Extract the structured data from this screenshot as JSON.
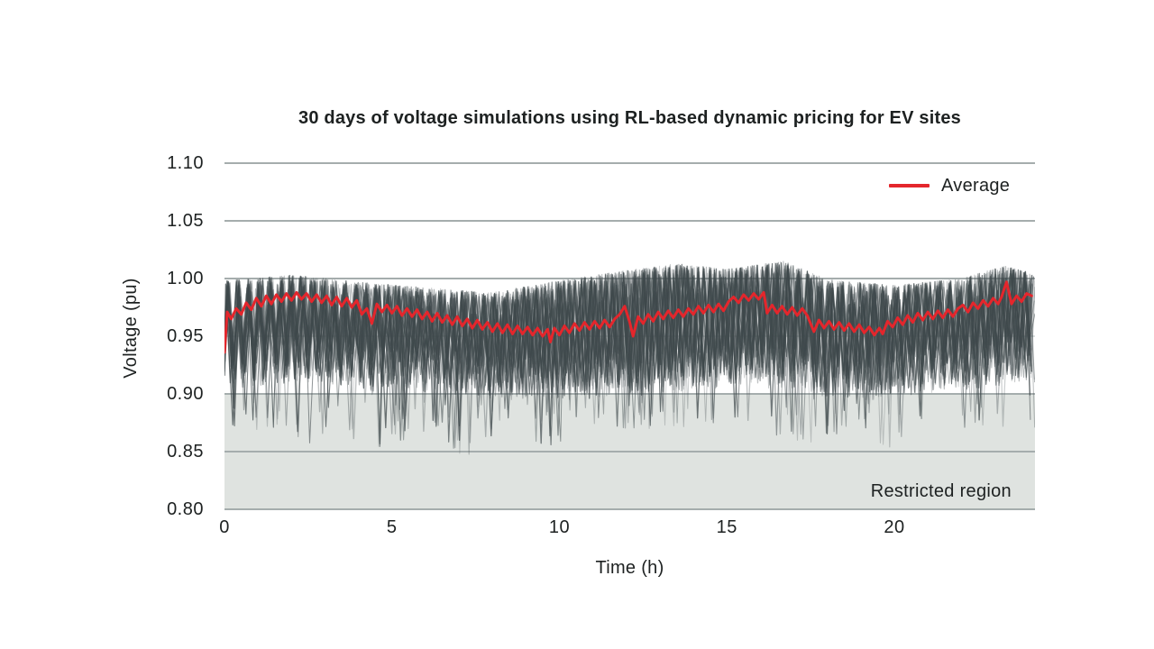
{
  "page": {
    "background": "#ffffff"
  },
  "chart_data": {
    "type": "line",
    "title": "30 days of voltage simulations using RL-based dynamic pricing for EV sites",
    "xlabel": "Time (h)",
    "ylabel": "Voltage (pu)",
    "xlim": [
      0,
      24.2
    ],
    "ylim": [
      0.8,
      1.1
    ],
    "xticks": [
      0,
      5,
      10,
      15,
      20
    ],
    "yticks": [
      0.8,
      0.85,
      0.9,
      0.95,
      1.0,
      1.05,
      1.1
    ],
    "grid": "horizontal",
    "minor_gridline_y": 0.95,
    "colors": {
      "grid": "#a5adad",
      "minor_grid": "#c7cdcd",
      "trace": "#3f494c",
      "text": "#1d2121",
      "background": "#ffffff"
    },
    "legend": {
      "position": "top-right",
      "entries": [
        {
          "label": "Average",
          "color": "#e4262c"
        }
      ]
    },
    "restricted_region": {
      "label": "Restricted region",
      "from": 0.8,
      "to": 0.9,
      "fill": "#dfe3e0"
    },
    "series": [
      {
        "name": "Average",
        "color": "#e4262c",
        "points": [
          [
            0,
            0.936
          ],
          [
            0.08,
            0.971
          ],
          [
            0.2,
            0.965
          ],
          [
            0.35,
            0.974
          ],
          [
            0.5,
            0.969
          ],
          [
            0.65,
            0.979
          ],
          [
            0.8,
            0.973
          ],
          [
            0.95,
            0.983
          ],
          [
            1.1,
            0.976
          ],
          [
            1.25,
            0.985
          ],
          [
            1.4,
            0.978
          ],
          [
            1.55,
            0.986
          ],
          [
            1.7,
            0.98
          ],
          [
            1.85,
            0.987
          ],
          [
            2.0,
            0.981
          ],
          [
            2.15,
            0.988
          ],
          [
            2.3,
            0.982
          ],
          [
            2.45,
            0.987
          ],
          [
            2.6,
            0.98
          ],
          [
            2.75,
            0.986
          ],
          [
            2.9,
            0.979
          ],
          [
            3.05,
            0.985
          ],
          [
            3.2,
            0.977
          ],
          [
            3.35,
            0.984
          ],
          [
            3.5,
            0.976
          ],
          [
            3.65,
            0.983
          ],
          [
            3.8,
            0.975
          ],
          [
            3.95,
            0.981
          ],
          [
            4.1,
            0.969
          ],
          [
            4.25,
            0.974
          ],
          [
            4.4,
            0.961
          ],
          [
            4.55,
            0.978
          ],
          [
            4.7,
            0.971
          ],
          [
            4.85,
            0.977
          ],
          [
            5.0,
            0.97
          ],
          [
            5.15,
            0.976
          ],
          [
            5.3,
            0.968
          ],
          [
            5.45,
            0.974
          ],
          [
            5.6,
            0.967
          ],
          [
            5.75,
            0.973
          ],
          [
            5.9,
            0.965
          ],
          [
            6.05,
            0.971
          ],
          [
            6.2,
            0.963
          ],
          [
            6.35,
            0.97
          ],
          [
            6.5,
            0.962
          ],
          [
            6.65,
            0.968
          ],
          [
            6.8,
            0.96
          ],
          [
            6.95,
            0.967
          ],
          [
            7.1,
            0.959
          ],
          [
            7.25,
            0.965
          ],
          [
            7.4,
            0.957
          ],
          [
            7.55,
            0.964
          ],
          [
            7.7,
            0.956
          ],
          [
            7.85,
            0.962
          ],
          [
            8.0,
            0.954
          ],
          [
            8.15,
            0.961
          ],
          [
            8.3,
            0.953
          ],
          [
            8.45,
            0.96
          ],
          [
            8.6,
            0.952
          ],
          [
            8.75,
            0.959
          ],
          [
            8.9,
            0.952
          ],
          [
            9.05,
            0.958
          ],
          [
            9.2,
            0.951
          ],
          [
            9.35,
            0.957
          ],
          [
            9.5,
            0.95
          ],
          [
            9.65,
            0.956
          ],
          [
            9.73,
            0.945
          ],
          [
            9.85,
            0.957
          ],
          [
            10.0,
            0.951
          ],
          [
            10.15,
            0.959
          ],
          [
            10.3,
            0.953
          ],
          [
            10.45,
            0.961
          ],
          [
            10.6,
            0.955
          ],
          [
            10.75,
            0.962
          ],
          [
            10.9,
            0.956
          ],
          [
            11.05,
            0.963
          ],
          [
            11.2,
            0.957
          ],
          [
            11.35,
            0.964
          ],
          [
            11.5,
            0.958
          ],
          [
            11.65,
            0.965
          ],
          [
            11.8,
            0.969
          ],
          [
            11.95,
            0.976
          ],
          [
            12.1,
            0.962
          ],
          [
            12.2,
            0.95
          ],
          [
            12.35,
            0.967
          ],
          [
            12.5,
            0.961
          ],
          [
            12.65,
            0.969
          ],
          [
            12.8,
            0.963
          ],
          [
            12.95,
            0.971
          ],
          [
            13.1,
            0.965
          ],
          [
            13.25,
            0.972
          ],
          [
            13.4,
            0.966
          ],
          [
            13.55,
            0.973
          ],
          [
            13.7,
            0.967
          ],
          [
            13.85,
            0.974
          ],
          [
            14.0,
            0.969
          ],
          [
            14.15,
            0.976
          ],
          [
            14.3,
            0.97
          ],
          [
            14.45,
            0.977
          ],
          [
            14.6,
            0.971
          ],
          [
            14.75,
            0.978
          ],
          [
            14.9,
            0.972
          ],
          [
            15.05,
            0.98
          ],
          [
            15.2,
            0.984
          ],
          [
            15.35,
            0.979
          ],
          [
            15.5,
            0.986
          ],
          [
            15.65,
            0.981
          ],
          [
            15.8,
            0.987
          ],
          [
            15.95,
            0.982
          ],
          [
            16.1,
            0.988
          ],
          [
            16.2,
            0.97
          ],
          [
            16.35,
            0.977
          ],
          [
            16.5,
            0.97
          ],
          [
            16.65,
            0.976
          ],
          [
            16.8,
            0.969
          ],
          [
            16.95,
            0.975
          ],
          [
            17.1,
            0.968
          ],
          [
            17.25,
            0.974
          ],
          [
            17.4,
            0.968
          ],
          [
            17.6,
            0.954
          ],
          [
            17.75,
            0.964
          ],
          [
            17.9,
            0.957
          ],
          [
            18.05,
            0.963
          ],
          [
            18.2,
            0.956
          ],
          [
            18.35,
            0.962
          ],
          [
            18.5,
            0.955
          ],
          [
            18.65,
            0.961
          ],
          [
            18.8,
            0.954
          ],
          [
            18.95,
            0.96
          ],
          [
            19.1,
            0.953
          ],
          [
            19.25,
            0.958
          ],
          [
            19.4,
            0.951
          ],
          [
            19.55,
            0.957
          ],
          [
            19.65,
            0.952
          ],
          [
            19.8,
            0.963
          ],
          [
            19.95,
            0.958
          ],
          [
            20.1,
            0.966
          ],
          [
            20.25,
            0.96
          ],
          [
            20.4,
            0.968
          ],
          [
            20.55,
            0.962
          ],
          [
            20.7,
            0.97
          ],
          [
            20.85,
            0.964
          ],
          [
            21.0,
            0.971
          ],
          [
            21.15,
            0.965
          ],
          [
            21.3,
            0.972
          ],
          [
            21.45,
            0.966
          ],
          [
            21.6,
            0.973
          ],
          [
            21.75,
            0.967
          ],
          [
            21.9,
            0.974
          ],
          [
            22.05,
            0.977
          ],
          [
            22.2,
            0.971
          ],
          [
            22.35,
            0.979
          ],
          [
            22.5,
            0.974
          ],
          [
            22.65,
            0.981
          ],
          [
            22.8,
            0.976
          ],
          [
            22.95,
            0.983
          ],
          [
            23.1,
            0.978
          ],
          [
            23.2,
            0.984
          ],
          [
            23.35,
            0.997
          ],
          [
            23.5,
            0.978
          ],
          [
            23.65,
            0.985
          ],
          [
            23.8,
            0.98
          ],
          [
            23.95,
            0.987
          ],
          [
            24.1,
            0.985
          ]
        ]
      }
    ],
    "simulations": {
      "description": "30 daily voltage simulation traces (gray), high-frequency oscillation approx. every 0.3 h between an upper envelope near 1.00-1.02 pu and troughs 0.85-0.94 pu",
      "count": 30,
      "seed": 7,
      "step_h": 0.16,
      "color": "#3f494c",
      "upper_envelope": [
        [
          0,
          1.0
        ],
        [
          2,
          1.005
        ],
        [
          4,
          0.999
        ],
        [
          6,
          0.994
        ],
        [
          8,
          0.99
        ],
        [
          10,
          1.0
        ],
        [
          12,
          1.009
        ],
        [
          13.5,
          1.015
        ],
        [
          15,
          1.01
        ],
        [
          16.7,
          1.017
        ],
        [
          18,
          1.001
        ],
        [
          20,
          0.996
        ],
        [
          22,
          1.002
        ],
        [
          23.3,
          1.013
        ],
        [
          24.2,
          1.006
        ]
      ],
      "deep_spike_envelope": [
        [
          0,
          0.885
        ],
        [
          2.6,
          0.856
        ],
        [
          3.5,
          0.868
        ],
        [
          4.5,
          0.849
        ],
        [
          6,
          0.868
        ],
        [
          7.2,
          0.845
        ],
        [
          8.5,
          0.868
        ],
        [
          9.7,
          0.854
        ],
        [
          11,
          0.872
        ],
        [
          13,
          0.872
        ],
        [
          15,
          0.874
        ],
        [
          17,
          0.86
        ],
        [
          17.8,
          0.856
        ],
        [
          19,
          0.868
        ],
        [
          19.6,
          0.849
        ],
        [
          21,
          0.87
        ],
        [
          23,
          0.878
        ],
        [
          24.2,
          0.9
        ]
      ],
      "trough_band": [
        0.9,
        0.938
      ]
    }
  }
}
